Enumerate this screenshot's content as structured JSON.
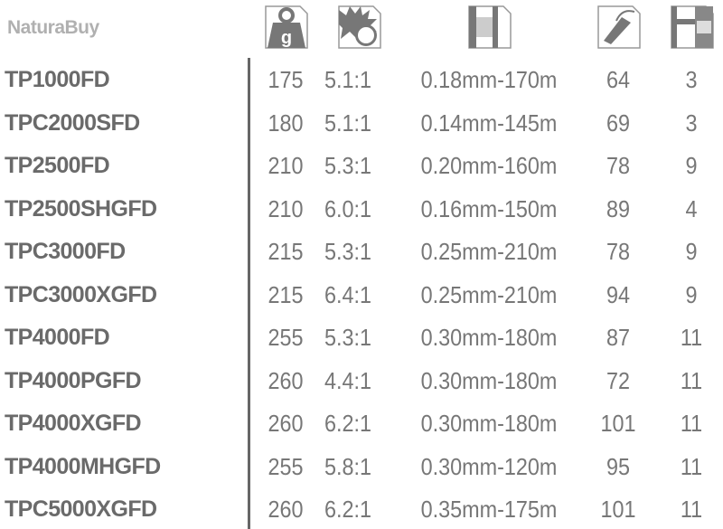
{
  "header_icons": [
    {
      "name": "weight-icon",
      "label": "g"
    },
    {
      "name": "gear-ratio-icon"
    },
    {
      "name": "line-capacity-icon"
    },
    {
      "name": "retrieve-handle-icon"
    },
    {
      "name": "bearings-icon"
    }
  ],
  "rows": [
    {
      "model": "TP1000FD",
      "weight": "175",
      "ratio": "5.1:1",
      "line": "0.18mm-170m",
      "retrieve": "64",
      "bearings": "3"
    },
    {
      "model": "TPC2000SFD",
      "weight": "180",
      "ratio": "5.1:1",
      "line": "0.14mm-145m",
      "retrieve": "69",
      "bearings": "3"
    },
    {
      "model": "TP2500FD",
      "weight": "210",
      "ratio": "5.3:1",
      "line": "0.20mm-160m",
      "retrieve": "78",
      "bearings": "9"
    },
    {
      "model": "TP2500SHGFD",
      "weight": "210",
      "ratio": "6.0:1",
      "line": "0.16mm-150m",
      "retrieve": "89",
      "bearings": "4"
    },
    {
      "model": "TPC3000FD",
      "weight": "215",
      "ratio": "5.3:1",
      "line": "0.25mm-210m",
      "retrieve": "78",
      "bearings": "9"
    },
    {
      "model": "TPC3000XGFD",
      "weight": "215",
      "ratio": "6.4:1",
      "line": "0.25mm-210m",
      "retrieve": "94",
      "bearings": "9"
    },
    {
      "model": "TP4000FD",
      "weight": "255",
      "ratio": "5.3:1",
      "line": "0.30mm-180m",
      "retrieve": "87",
      "bearings": "11"
    },
    {
      "model": "TP4000PGFD",
      "weight": "260",
      "ratio": "4.4:1",
      "line": "0.30mm-180m",
      "retrieve": "72",
      "bearings": "11"
    },
    {
      "model": "TP4000XGFD",
      "weight": "260",
      "ratio": "6.2:1",
      "line": "0.30mm-180m",
      "retrieve": "101",
      "bearings": "11"
    },
    {
      "model": "TP4000MHGFD",
      "weight": "255",
      "ratio": "5.8:1",
      "line": "0.30mm-120m",
      "retrieve": "95",
      "bearings": "11"
    },
    {
      "model": "TPC5000XGFD",
      "weight": "260",
      "ratio": "6.2:1",
      "line": "0.35mm-175m",
      "retrieve": "101",
      "bearings": "11"
    }
  ],
  "watermark": "NaturaBuy",
  "colors": {
    "text": "#6f6f6f",
    "icon": "#777777"
  }
}
